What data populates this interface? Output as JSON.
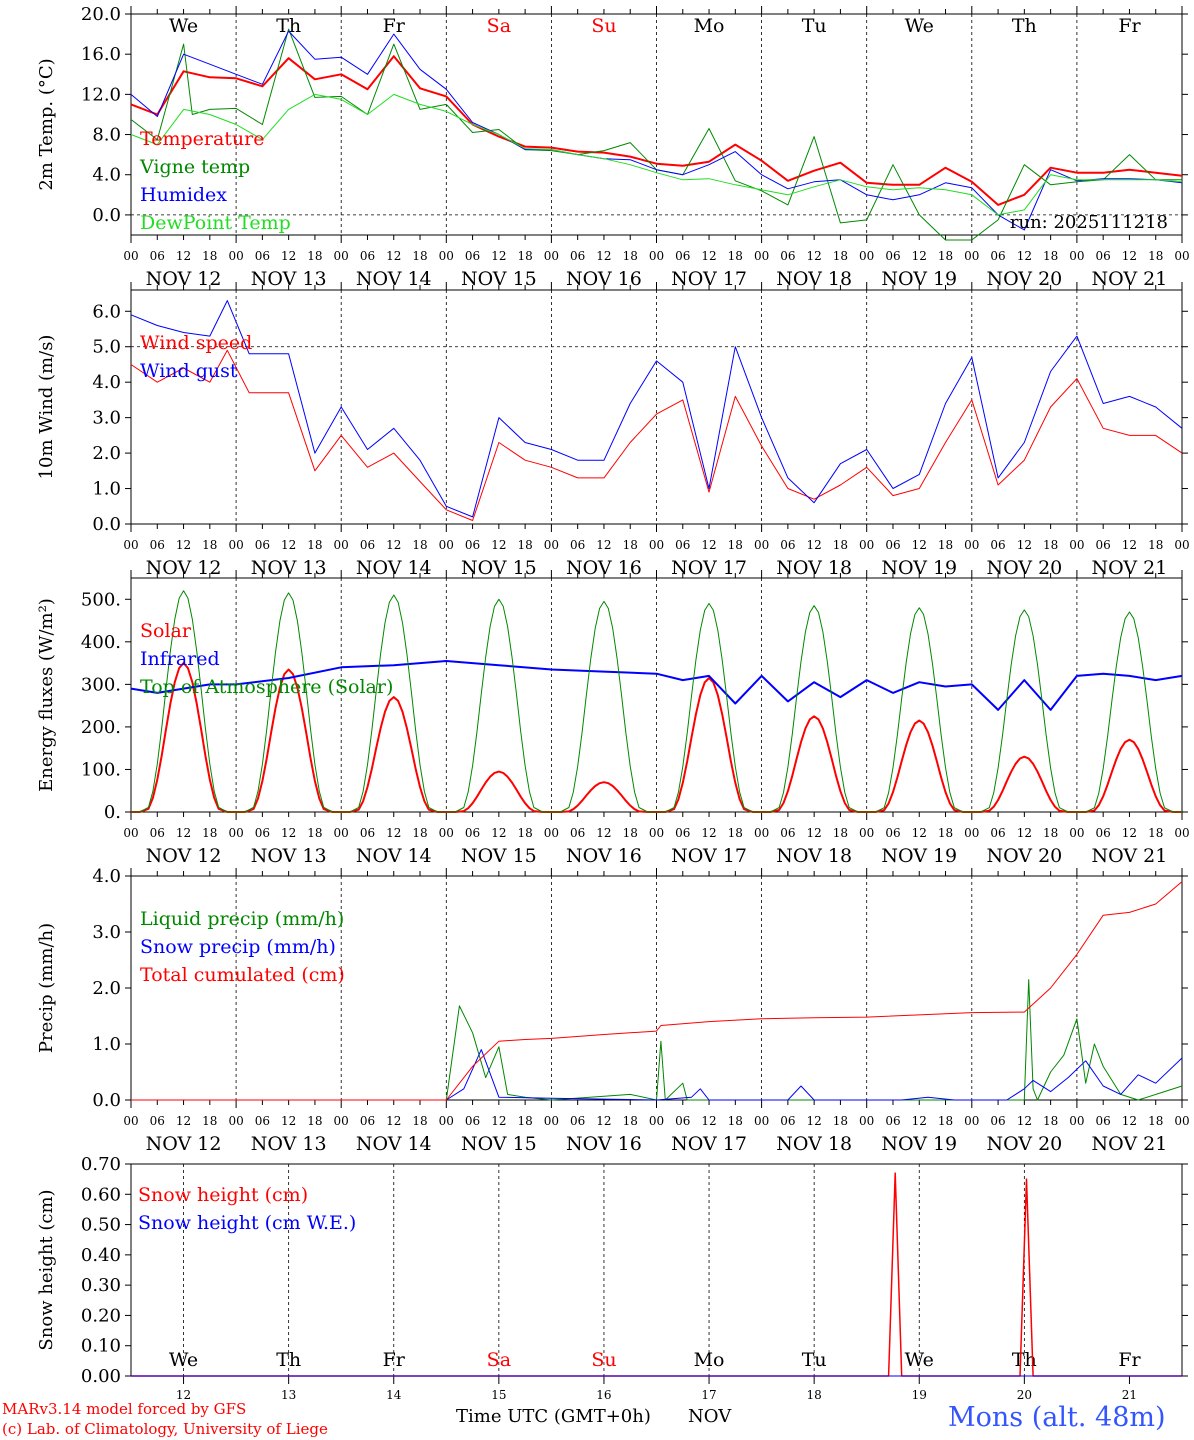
{
  "colors": {
    "red": "#ff0000",
    "green": "#008800",
    "blue": "#0000ff",
    "lightgreen": "#22dd22",
    "brandblue": "#3355ff",
    "black": "#000000"
  },
  "weekdays": [
    "We",
    "Th",
    "Fr",
    "Sa",
    "Su",
    "Mo",
    "Tu",
    "We",
    "Th",
    "Fr"
  ],
  "weekend_index": [
    3,
    4
  ],
  "date_labels": [
    "NOV 12",
    "NOV 13",
    "NOV 14",
    "NOV 15",
    "NOV 16",
    "NOV 17",
    "NOV 18",
    "NOV 19",
    "NOV 20",
    "NOV 21"
  ],
  "hour_labels": [
    "00",
    "06",
    "12",
    "18"
  ],
  "final_hour_label": "00",
  "day_numbers": [
    "12",
    "13",
    "14",
    "15",
    "16",
    "17",
    "18",
    "19",
    "20",
    "21"
  ],
  "chart_data": [
    {
      "type": "line",
      "id": "temp",
      "ylabel": "2m Temp. (°C)",
      "ylim": [
        -2,
        20
      ],
      "yticks": [
        0,
        4,
        8,
        12,
        16,
        20
      ],
      "ytick_labels": [
        "0.0",
        "4.0",
        "8.0",
        "12.0",
        "16.0",
        "20.0"
      ],
      "dashed_ref": 0,
      "run_label": "run: 2025111218",
      "x_unit": "hours since NOV 12 00 UTC",
      "x_range": [
        0,
        240
      ],
      "series": [
        {
          "name": "Temperature",
          "color": "red",
          "width": 2,
          "x": [
            0,
            6,
            12,
            18,
            24,
            30,
            36,
            42,
            48,
            54,
            60,
            66,
            72,
            78,
            84,
            90,
            96,
            102,
            108,
            114,
            120,
            126,
            132,
            138,
            144,
            150,
            156,
            162,
            168,
            174,
            180,
            186,
            192,
            198,
            204,
            210,
            216,
            222,
            228,
            234,
            240
          ],
          "values": [
            11,
            10,
            14.3,
            13.7,
            13.6,
            12.8,
            15.6,
            13.5,
            14,
            12.5,
            15.8,
            12.6,
            11.8,
            9,
            7.8,
            6.8,
            6.7,
            6.3,
            6.2,
            5.8,
            5.1,
            4.9,
            5.3,
            7,
            5.4,
            3.4,
            4.4,
            5.2,
            3.2,
            3,
            3,
            4.7,
            3.3,
            1,
            2,
            4.7,
            4.2,
            4.2,
            4.5,
            4.2,
            3.9
          ]
        },
        {
          "name": "Vigne temp",
          "color": "green",
          "width": 1,
          "x": [
            0,
            6,
            12,
            14,
            18,
            24,
            30,
            36,
            42,
            48,
            54,
            60,
            66,
            72,
            78,
            84,
            90,
            96,
            102,
            108,
            114,
            120,
            126,
            132,
            138,
            144,
            150,
            156,
            162,
            168,
            174,
            180,
            186,
            192,
            198,
            204,
            210,
            216,
            222,
            228,
            234,
            240
          ],
          "values": [
            9.5,
            7.5,
            17,
            10,
            10.5,
            10.6,
            9,
            18.5,
            11.7,
            11.8,
            10,
            17,
            10.5,
            11,
            8.2,
            8.5,
            6.5,
            6.4,
            6,
            6.4,
            7.2,
            4.5,
            4,
            8.6,
            3.4,
            2.4,
            1,
            7.8,
            -0.8,
            -0.5,
            5,
            0,
            -2.5,
            -2.5,
            -0.5,
            5,
            3,
            3.3,
            3.5,
            6,
            3.5,
            3.5
          ]
        },
        {
          "name": "Humidex",
          "color": "blue",
          "width": 1,
          "x": [
            0,
            6,
            12,
            18,
            24,
            30,
            36,
            42,
            48,
            54,
            60,
            66,
            72,
            78,
            84,
            90,
            96,
            102,
            108,
            114,
            120,
            126,
            132,
            138,
            144,
            150,
            156,
            162,
            168,
            174,
            180,
            186,
            192,
            198,
            204,
            210,
            216,
            222,
            228,
            234,
            240
          ],
          "values": [
            12,
            9.8,
            16,
            15,
            14,
            13,
            18.3,
            15.5,
            15.7,
            14,
            18,
            14.5,
            12.5,
            9.2,
            8,
            6.5,
            6.5,
            6,
            5.6,
            5.5,
            4.5,
            4,
            5,
            6.3,
            4,
            2.6,
            3.3,
            3.5,
            2,
            1.5,
            2,
            3.2,
            2.7,
            0,
            -1.5,
            4.5,
            3.4,
            3.6,
            3.6,
            3.5,
            3.2
          ]
        },
        {
          "name": "DewPoint Temp",
          "color": "lightgreen",
          "width": 1,
          "x": [
            0,
            6,
            12,
            18,
            24,
            30,
            36,
            42,
            48,
            54,
            60,
            66,
            72,
            78,
            84,
            90,
            96,
            102,
            108,
            114,
            120,
            126,
            132,
            138,
            144,
            150,
            156,
            162,
            168,
            174,
            180,
            186,
            192,
            198,
            204,
            210,
            216,
            222,
            228,
            234,
            240
          ],
          "values": [
            8,
            7,
            10.5,
            10,
            9,
            7.5,
            10.5,
            12,
            11.5,
            10,
            12,
            11,
            10.3,
            9,
            8,
            6.6,
            6.5,
            6,
            5.6,
            5,
            4.2,
            3.5,
            3.6,
            3,
            2.5,
            2,
            2.8,
            3.5,
            2.8,
            2.5,
            2.7,
            2.5,
            2,
            0,
            0.5,
            4,
            3.5,
            3.5,
            3.5,
            3.5,
            3.3
          ]
        }
      ]
    },
    {
      "type": "line",
      "id": "wind",
      "ylabel": "10m Wind (m/s)",
      "ylim": [
        0,
        6.6
      ],
      "yticks": [
        0,
        1,
        2,
        3,
        4,
        5,
        6
      ],
      "ytick_labels": [
        "0.0",
        "1.0",
        "2.0",
        "3.0",
        "4.0",
        "5.0",
        "6.0"
      ],
      "dashed_ref": 5,
      "x_range": [
        0,
        240
      ],
      "series": [
        {
          "name": "Wind speed",
          "color": "red",
          "width": 1,
          "x": [
            0,
            6,
            12,
            18,
            22,
            27,
            36,
            42,
            48,
            54,
            60,
            66,
            72,
            78,
            84,
            90,
            96,
            102,
            108,
            114,
            120,
            126,
            132,
            138,
            144,
            150,
            156,
            162,
            168,
            174,
            180,
            186,
            192,
            198,
            204,
            210,
            216,
            222,
            228,
            234,
            240
          ],
          "values": [
            4.5,
            4,
            4.4,
            4,
            4.9,
            3.7,
            3.7,
            1.5,
            2.5,
            1.6,
            2,
            1.2,
            0.4,
            0.1,
            2.3,
            1.8,
            1.6,
            1.3,
            1.3,
            2.3,
            3.1,
            3.5,
            0.9,
            3.6,
            2.2,
            1,
            0.7,
            1.1,
            1.6,
            0.8,
            1,
            2.3,
            3.5,
            1.1,
            1.8,
            3.3,
            4.1,
            2.7,
            2.5,
            2.5,
            2
          ]
        },
        {
          "name": "Wind gust",
          "color": "blue",
          "width": 1,
          "x": [
            0,
            6,
            12,
            18,
            22,
            27,
            36,
            42,
            48,
            54,
            60,
            66,
            72,
            78,
            84,
            90,
            96,
            102,
            108,
            114,
            120,
            126,
            132,
            138,
            144,
            150,
            156,
            162,
            168,
            174,
            180,
            186,
            192,
            198,
            204,
            210,
            216,
            222,
            228,
            234,
            240
          ],
          "values": [
            5.9,
            5.6,
            5.4,
            5.3,
            6.3,
            4.8,
            4.8,
            2,
            3.3,
            2.1,
            2.7,
            1.8,
            0.5,
            0.2,
            3,
            2.3,
            2.1,
            1.8,
            1.8,
            3.4,
            4.6,
            4,
            1,
            5,
            3,
            1.3,
            0.6,
            1.7,
            2.1,
            1,
            1.4,
            3.4,
            4.7,
            1.3,
            2.3,
            4.3,
            5.3,
            3.4,
            3.6,
            3.3,
            2.7
          ]
        }
      ]
    },
    {
      "type": "line",
      "id": "energy",
      "ylabel": "Energy fluxes (W/m²)",
      "ylim": [
        0,
        550
      ],
      "yticks": [
        0,
        100,
        200,
        300,
        400,
        500
      ],
      "ytick_labels": [
        "0.",
        "100.",
        "200.",
        "300.",
        "400.",
        "500."
      ],
      "x_range": [
        0,
        240
      ],
      "series": [
        {
          "name": "Solar",
          "color": "red",
          "width": 2,
          "kind": "peaks",
          "peaks": [
            350,
            335,
            270,
            95,
            70,
            315,
            225,
            215,
            130,
            170
          ]
        },
        {
          "name": "Infrared",
          "color": "blue",
          "width": 2,
          "x": [
            0,
            6,
            12,
            18,
            24,
            36,
            48,
            60,
            72,
            84,
            96,
            108,
            120,
            126,
            132,
            138,
            144,
            150,
            156,
            162,
            168,
            174,
            180,
            186,
            192,
            198,
            204,
            210,
            216,
            222,
            228,
            234,
            240
          ],
          "values": [
            290,
            280,
            290,
            300,
            300,
            315,
            340,
            345,
            355,
            345,
            335,
            330,
            325,
            310,
            320,
            255,
            320,
            260,
            305,
            270,
            310,
            280,
            305,
            295,
            300,
            240,
            310,
            240,
            320,
            325,
            320,
            310,
            320
          ]
        },
        {
          "name": "Top of Atmosphere (Solar)",
          "color": "green",
          "width": 1,
          "kind": "peaks",
          "peaks": [
            520,
            515,
            510,
            500,
            495,
            490,
            485,
            480,
            475,
            470
          ]
        }
      ]
    },
    {
      "type": "line",
      "id": "precip",
      "ylabel": "Precip (mm/h)",
      "ylim": [
        0,
        4
      ],
      "yticks": [
        0,
        1,
        2,
        3,
        4
      ],
      "ytick_labels": [
        "0.0",
        "1.0",
        "2.0",
        "3.0",
        "4.0"
      ],
      "x_range": [
        0,
        240
      ],
      "series": [
        {
          "name": "Liquid precip (mm/h)",
          "color": "green",
          "width": 1,
          "x": [
            0,
            70,
            72,
            75,
            78,
            81,
            84,
            86,
            90,
            96,
            114,
            120,
            121,
            122,
            126,
            127,
            129,
            132,
            186,
            204,
            205,
            206,
            207,
            210,
            213,
            216,
            218,
            220,
            222,
            226,
            230,
            236,
            240
          ],
          "values": [
            0,
            0,
            0,
            1.68,
            1.2,
            0.4,
            0.95,
            0.1,
            0.05,
            0,
            0.1,
            0,
            1.05,
            0,
            0.3,
            0,
            0,
            0,
            0,
            0,
            2.15,
            0.2,
            0,
            0.5,
            0.8,
            1.45,
            0.3,
            1,
            0.6,
            0.1,
            0,
            0.15,
            0.25
          ]
        },
        {
          "name": "Snow precip (mm/h)",
          "color": "blue",
          "width": 1,
          "x": [
            0,
            72,
            76,
            80,
            84,
            96,
            120,
            128,
            130,
            132,
            150,
            153,
            156,
            176,
            182,
            188,
            200,
            204,
            206,
            210,
            214,
            218,
            222,
            226,
            230,
            234,
            240
          ],
          "values": [
            0,
            0,
            0.2,
            0.9,
            0.05,
            0.03,
            0,
            0.05,
            0.2,
            0,
            0,
            0.25,
            0,
            0,
            0.05,
            0,
            0,
            0.2,
            0.35,
            0.15,
            0.4,
            0.7,
            0.25,
            0.1,
            0.45,
            0.3,
            0.75
          ]
        },
        {
          "name": "Total cumulated (cm)",
          "color": "red",
          "width": 1,
          "x": [
            0,
            72,
            78,
            84,
            90,
            96,
            108,
            120,
            121,
            132,
            144,
            156,
            168,
            180,
            192,
            204,
            210,
            216,
            222,
            228,
            234,
            240
          ],
          "values": [
            0,
            0,
            0.6,
            1.05,
            1.08,
            1.1,
            1.17,
            1.23,
            1.33,
            1.4,
            1.45,
            1.47,
            1.48,
            1.52,
            1.56,
            1.57,
            2,
            2.6,
            3.3,
            3.35,
            3.5,
            3.9
          ]
        }
      ]
    },
    {
      "type": "line",
      "id": "snow",
      "ylabel": "Snow height (cm)",
      "ylim": [
        0,
        0.7
      ],
      "yticks": [
        0,
        0.1,
        0.2,
        0.3,
        0.4,
        0.5,
        0.6,
        0.7
      ],
      "ytick_labels": [
        "0.00",
        "0.10",
        "0.20",
        "0.30",
        "0.40",
        "0.50",
        "0.60",
        "0.70"
      ],
      "x_range": [
        0,
        240
      ],
      "series": [
        {
          "name": "Snow height (cm)",
          "color": "red",
          "width": 1.5,
          "x": [
            0,
            173,
            174.5,
            176,
            203,
            204.5,
            206,
            240
          ],
          "values": [
            0,
            0,
            0.67,
            0,
            0,
            0.65,
            0,
            0
          ]
        },
        {
          "name": "Snow height (cm W.E.)",
          "color": "blue",
          "width": 1,
          "x": [
            0,
            240
          ],
          "values": [
            0,
            0
          ]
        }
      ]
    }
  ],
  "xlabel": "Time UTC (GMT+0h)",
  "month_label": "NOV",
  "credit_line1": "MARv3.14 model forced by GFS",
  "credit_line2": "(c) Lab. of Climatology, University of Liege",
  "station": "Mons (alt. 48m)"
}
